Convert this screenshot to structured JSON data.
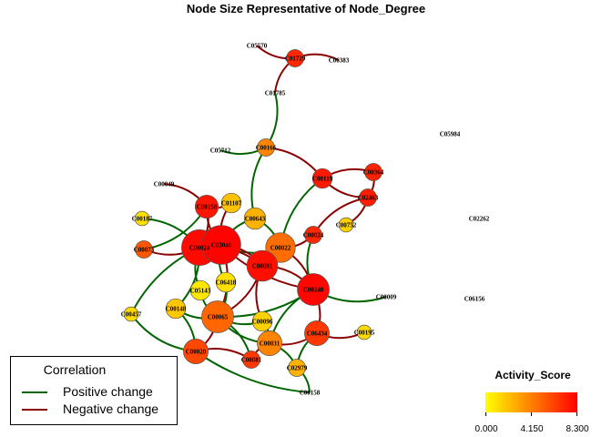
{
  "title": "Node Size Representative of Node_Degree",
  "colors": {
    "positive": "#006400",
    "negative": "#8b0000",
    "low": "#ffff00",
    "mid": "#ff8000",
    "high": "#ff0000"
  },
  "legend": {
    "title": "Correlation",
    "items": [
      {
        "label": "Positive change",
        "color": "#006400"
      },
      {
        "label": "Negative change",
        "color": "#8b0000"
      }
    ]
  },
  "colorbar": {
    "title": "Activity_Score",
    "min": 0,
    "max": 8.3,
    "tick_labels": [
      "0.000",
      "4.150",
      "8.300"
    ]
  },
  "nodes": [
    {
      "id": "C05570",
      "label": "C05570",
      "degree": 0,
      "score": 0,
      "shown": false
    },
    {
      "id": "C01729",
      "label": "C01729",
      "degree": 2,
      "score": 7.0
    },
    {
      "id": "C06383",
      "label": "C06383",
      "degree": 0,
      "score": 0,
      "shown": false
    },
    {
      "id": "C01785",
      "label": "C01785",
      "degree": 2,
      "score": 0,
      "shown": false
    },
    {
      "id": "C05984",
      "label": "C05984",
      "degree": 0,
      "score": 0,
      "shown": false
    },
    {
      "id": "C05712",
      "label": "C05712",
      "degree": 1,
      "score": 0,
      "shown": false
    },
    {
      "id": "C00166",
      "label": "C00166",
      "degree": 2,
      "score": 4.0
    },
    {
      "id": "C00119",
      "label": "C00119",
      "degree": 3,
      "score": 7.5
    },
    {
      "id": "C00364",
      "label": "C00364",
      "degree": 2,
      "score": 7.2
    },
    {
      "id": "C00049",
      "label": "C00049",
      "degree": 1,
      "score": 0,
      "shown": false
    },
    {
      "id": "C02463",
      "label": "C02463",
      "degree": 2,
      "score": 7.4
    },
    {
      "id": "C00158",
      "label": "C00158",
      "degree": 5,
      "score": 7.6
    },
    {
      "id": "C01107",
      "label": "C01107",
      "degree": 3,
      "score": 2.0
    },
    {
      "id": "C00187",
      "label": "C00187",
      "degree": 1,
      "score": 1.0
    },
    {
      "id": "C00643",
      "label": "C00643",
      "degree": 4,
      "score": 2.5
    },
    {
      "id": "C02262",
      "label": "C02262",
      "degree": 0,
      "score": 0,
      "shown": false
    },
    {
      "id": "C00752",
      "label": "C00752",
      "degree": 1,
      "score": 1.5
    },
    {
      "id": "C00024",
      "label": "C00024",
      "degree": 2,
      "score": 7.0
    },
    {
      "id": "C00073",
      "label": "C00073",
      "degree": 2,
      "score": 5.5
    },
    {
      "id": "C00022",
      "label": "C00022",
      "degree": 10,
      "score": 4.8
    },
    {
      "id": "C00024b",
      "label": "C00024",
      "degree": 16,
      "score": 8.0
    },
    {
      "id": "C03046",
      "label": "C03046",
      "degree": 20,
      "score": 8.2
    },
    {
      "id": "C00091",
      "label": "C00091",
      "degree": 11,
      "score": 7.8
    },
    {
      "id": "C00248",
      "label": "C00248",
      "degree": 12,
      "score": 8.1
    },
    {
      "id": "C00009",
      "label": "C00009",
      "degree": 1,
      "score": 0,
      "shown": false
    },
    {
      "id": "C06156",
      "label": "C06156",
      "degree": 0,
      "score": 0,
      "shown": false
    },
    {
      "id": "C05143",
      "label": "C05143",
      "degree": 3,
      "score": 0.8
    },
    {
      "id": "C06418",
      "label": "C06418",
      "degree": 3,
      "score": 1.0
    },
    {
      "id": "C00148",
      "label": "C00148",
      "degree": 3,
      "score": 1.8
    },
    {
      "id": "C00065",
      "label": "C00065",
      "degree": 12,
      "score": 5.0
    },
    {
      "id": "C00457",
      "label": "C00457",
      "degree": 1,
      "score": 1.2
    },
    {
      "id": "C00096",
      "label": "C00096",
      "degree": 3,
      "score": 1.5
    },
    {
      "id": "C06434",
      "label": "C06434",
      "degree": 6,
      "score": 6.5
    },
    {
      "id": "C00195",
      "label": "C00195",
      "degree": 1,
      "score": 1.2
    },
    {
      "id": "C00020",
      "label": "C00020",
      "degree": 6,
      "score": 6.0
    },
    {
      "id": "C00031",
      "label": "C00031",
      "degree": 6,
      "score": 4.0
    },
    {
      "id": "C00081",
      "label": "C00081",
      "degree": 2,
      "score": 6.5
    },
    {
      "id": "C02979",
      "label": "C02979",
      "degree": 2,
      "score": 2.5
    },
    {
      "id": "C00158b",
      "label": "C00158",
      "degree": 1,
      "score": 0,
      "shown": false
    }
  ],
  "edges": [
    {
      "from": "C05570",
      "to": "C01729",
      "type": "negative"
    },
    {
      "from": "C01729",
      "to": "C06383",
      "type": "negative"
    },
    {
      "from": "C01729",
      "to": "C01785",
      "type": "negative"
    },
    {
      "from": "C01785",
      "to": "C00166",
      "type": "positive"
    },
    {
      "from": "C05712",
      "to": "C00166",
      "type": "positive"
    },
    {
      "from": "C00166",
      "to": "C00119",
      "type": "negative"
    },
    {
      "from": "C00166",
      "to": "C00643",
      "type": "positive"
    },
    {
      "from": "C00119",
      "to": "C00364",
      "type": "negative"
    },
    {
      "from": "C00119",
      "to": "C02463",
      "type": "negative"
    },
    {
      "from": "C00364",
      "to": "C02463",
      "type": "negative"
    },
    {
      "from": "C00119",
      "to": "C00022",
      "type": "positive"
    },
    {
      "from": "C02463",
      "to": "C00752",
      "type": "negative"
    },
    {
      "from": "C02463",
      "to": "C00024",
      "type": "negative"
    },
    {
      "from": "C00049",
      "to": "C00158",
      "type": "negative"
    },
    {
      "from": "C00158",
      "to": "C01107",
      "type": "negative"
    },
    {
      "from": "C00158",
      "to": "C00024b",
      "type": "negative"
    },
    {
      "from": "C00158",
      "to": "C03046",
      "type": "negative"
    },
    {
      "from": "C00158",
      "to": "C00073",
      "type": "positive"
    },
    {
      "from": "C01107",
      "to": "C03046",
      "type": "negative"
    },
    {
      "from": "C00187",
      "to": "C00024b",
      "type": "positive"
    },
    {
      "from": "C00073",
      "to": "C00024b",
      "type": "negative"
    },
    {
      "from": "C00643",
      "to": "C00022",
      "type": "positive"
    },
    {
      "from": "C00643",
      "to": "C03046",
      "type": "positive"
    },
    {
      "from": "C00024",
      "to": "C00022",
      "type": "negative"
    },
    {
      "from": "C00024",
      "to": "C00248",
      "type": "positive"
    },
    {
      "from": "C00022",
      "to": "C03046",
      "type": "positive"
    },
    {
      "from": "C00022",
      "to": "C00091",
      "type": "negative"
    },
    {
      "from": "C00022",
      "to": "C00248",
      "type": "negative"
    },
    {
      "from": "C00024b",
      "to": "C03046",
      "type": "negative"
    },
    {
      "from": "C00024b",
      "to": "C00091",
      "type": "negative"
    },
    {
      "from": "C00024b",
      "to": "C05143",
      "type": "positive"
    },
    {
      "from": "C00024b",
      "to": "C00148",
      "type": "positive"
    },
    {
      "from": "C00024b",
      "to": "C00457",
      "type": "positive"
    },
    {
      "from": "C03046",
      "to": "C00091",
      "type": "negative"
    },
    {
      "from": "C03046",
      "to": "C06418",
      "type": "positive"
    },
    {
      "from": "C03046",
      "to": "C00065",
      "type": "negative"
    },
    {
      "from": "C03046",
      "to": "C00248",
      "type": "negative"
    },
    {
      "from": "C00091",
      "to": "C00248",
      "type": "negative"
    },
    {
      "from": "C00091",
      "to": "C00096",
      "type": "negative"
    },
    {
      "from": "C00091",
      "to": "C00065",
      "type": "negative"
    },
    {
      "from": "C00248",
      "to": "C00009",
      "type": "positive"
    },
    {
      "from": "C00248",
      "to": "C06434",
      "type": "negative"
    },
    {
      "from": "C00248",
      "to": "C00031",
      "type": "positive"
    },
    {
      "from": "C00248",
      "to": "C00065",
      "type": "positive"
    },
    {
      "from": "C05143",
      "to": "C00065",
      "type": "positive"
    },
    {
      "from": "C06418",
      "to": "C00065",
      "type": "positive"
    },
    {
      "from": "C00148",
      "to": "C00065",
      "type": "positive"
    },
    {
      "from": "C00148",
      "to": "C00020",
      "type": "positive"
    },
    {
      "from": "C00457",
      "to": "C00020",
      "type": "positive"
    },
    {
      "from": "C00065",
      "to": "C00020",
      "type": "negative"
    },
    {
      "from": "C00065",
      "to": "C00096",
      "type": "positive"
    },
    {
      "from": "C00065",
      "to": "C00081",
      "type": "positive"
    },
    {
      "from": "C00065",
      "to": "C00031",
      "type": "positive"
    },
    {
      "from": "C00020",
      "to": "C00081",
      "type": "negative"
    },
    {
      "from": "C00020",
      "to": "C00158b",
      "type": "positive"
    },
    {
      "from": "C00096",
      "to": "C00031",
      "type": "positive"
    },
    {
      "from": "C06434",
      "to": "C00195",
      "type": "negative"
    },
    {
      "from": "C06434",
      "to": "C00031",
      "type": "negative"
    },
    {
      "from": "C06434",
      "to": "C02979",
      "type": "positive"
    },
    {
      "from": "C00031",
      "to": "C02979",
      "type": "positive"
    },
    {
      "from": "C00031",
      "to": "C00081",
      "type": "negative"
    },
    {
      "from": "C02979",
      "to": "C00158b",
      "type": "positive"
    }
  ]
}
